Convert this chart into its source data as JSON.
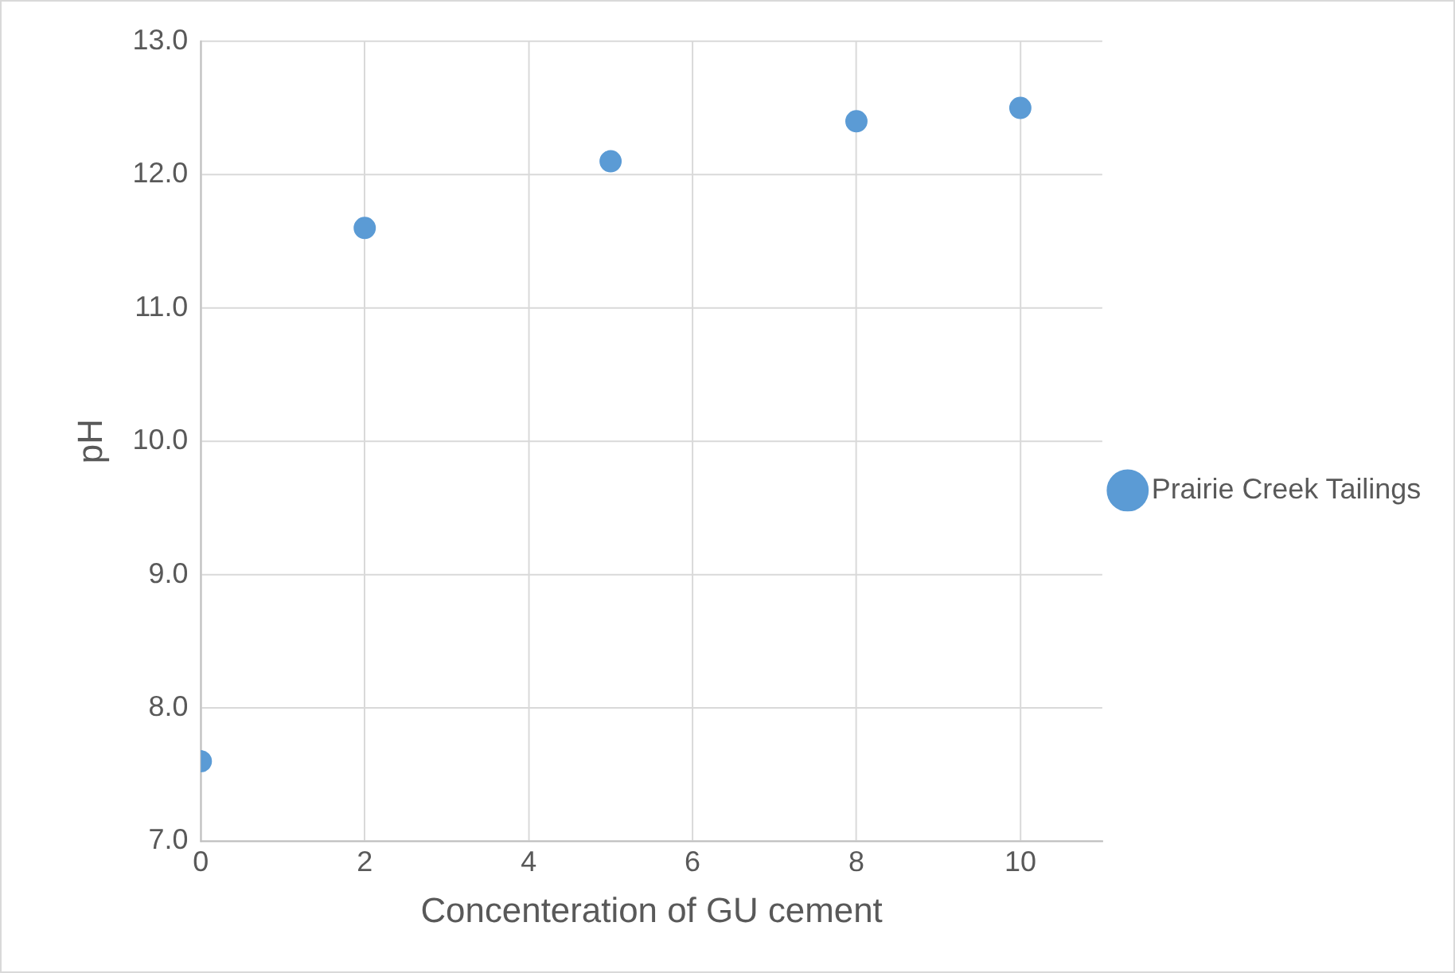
{
  "chart_data": {
    "type": "scatter",
    "xlabel": "Concenteration of GU cement",
    "ylabel": "pH",
    "series": [
      {
        "name": "Prairie Creek Tailings",
        "color": "#5b9bd5",
        "x": [
          0,
          2,
          5,
          8,
          10
        ],
        "values": [
          7.6,
          11.6,
          12.1,
          12.4,
          12.5
        ]
      }
    ],
    "xlim": [
      0,
      11
    ],
    "xticks": [
      0,
      2,
      4,
      6,
      8,
      10
    ],
    "ylim": [
      7,
      13
    ],
    "yticks": [
      {
        "value": 7,
        "label": "7.0"
      },
      {
        "value": 8,
        "label": "8.0"
      },
      {
        "value": 9,
        "label": "9.0"
      },
      {
        "value": 10,
        "label": "10.0"
      },
      {
        "value": 11,
        "label": "11.0"
      },
      {
        "value": 12,
        "label": "12.0"
      },
      {
        "value": 13,
        "label": "13.0"
      }
    ],
    "grid": true,
    "legend": "right",
    "marker": "circle"
  }
}
